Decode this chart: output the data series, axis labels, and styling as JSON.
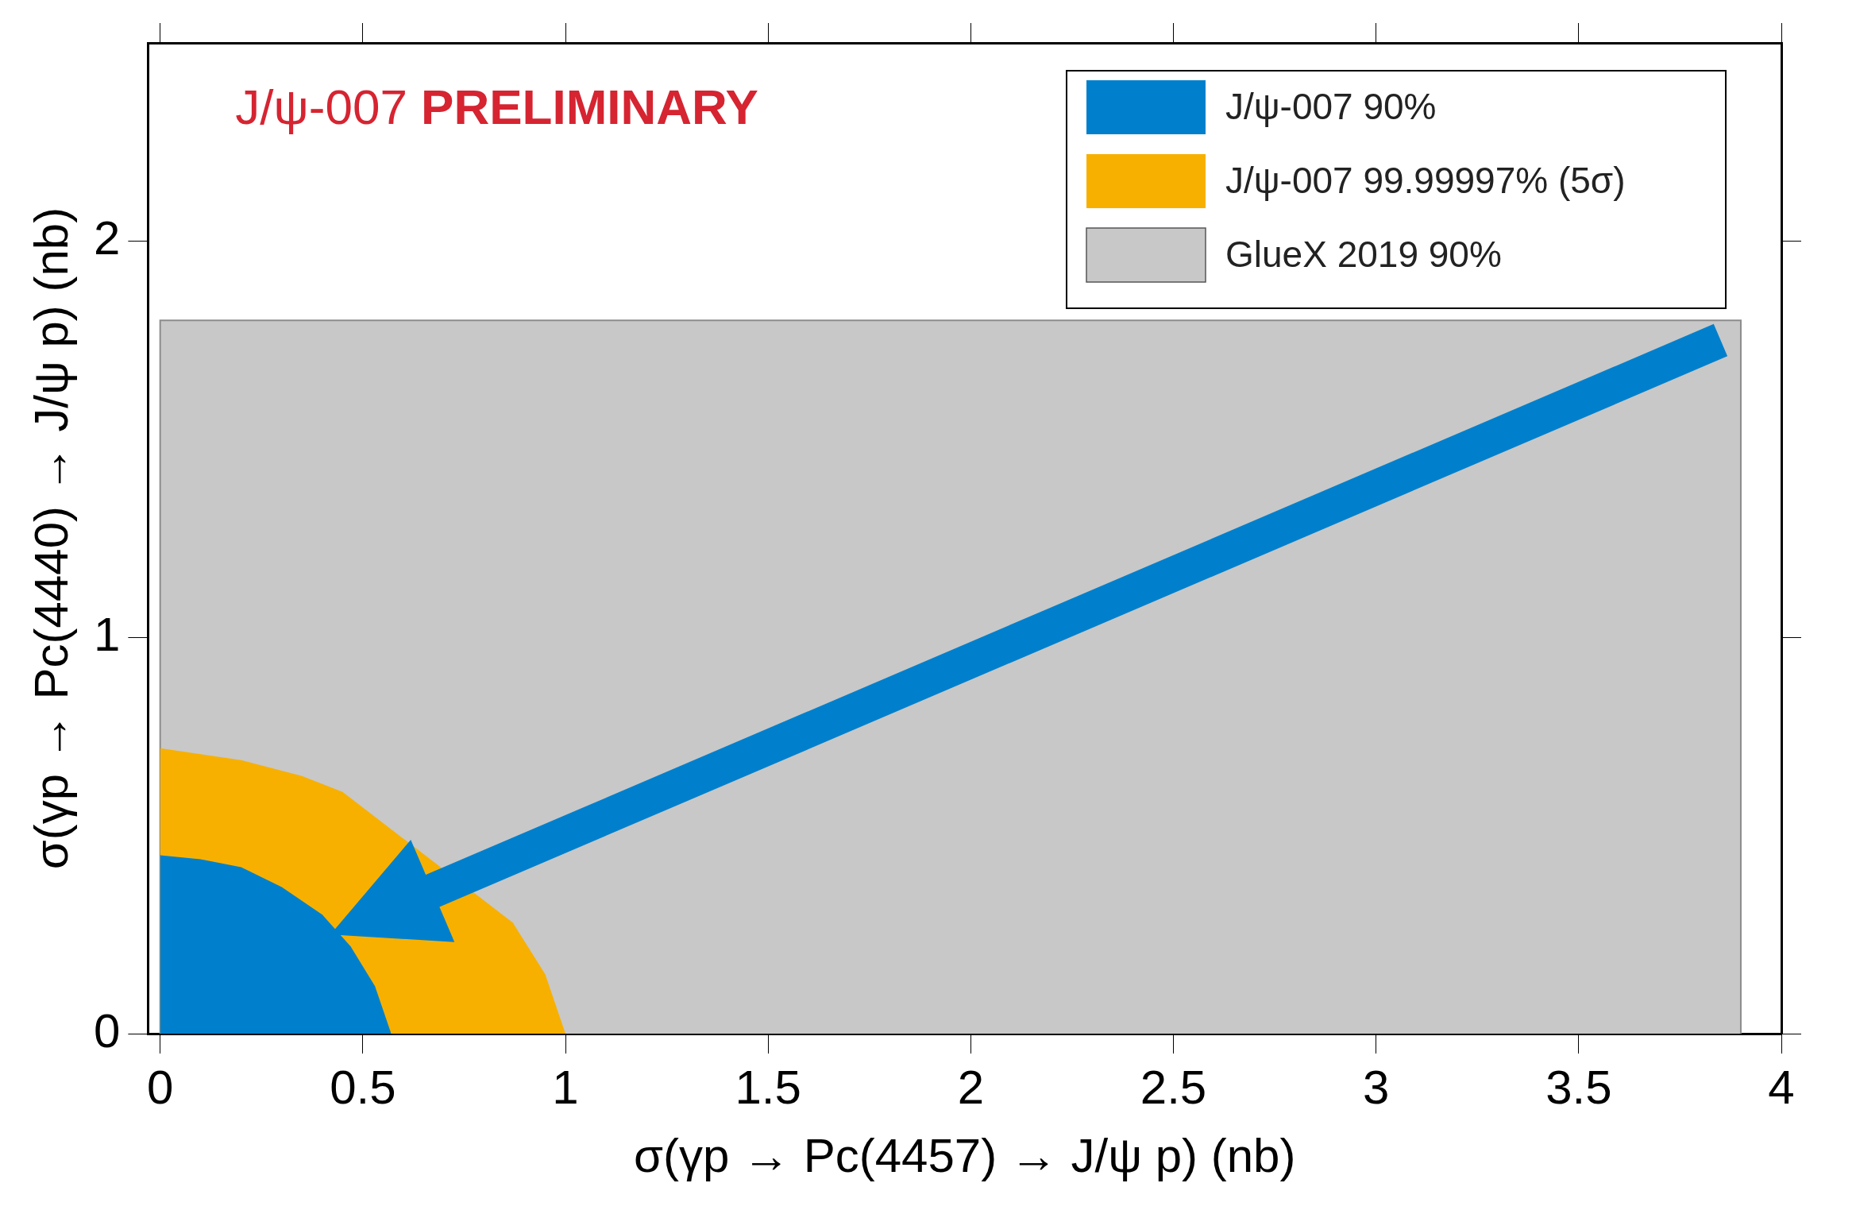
{
  "chart_data": {
    "type": "area",
    "xlabel": "σ(γp → Pc(4457) → J/ψ p) (nb)",
    "ylabel": "σ(γp → Pc(4440) → J/ψ p) (nb)",
    "annotations": [
      "J/ψ-007 PRELIMINARY"
    ],
    "xlim": [
      -0.03,
      4
    ],
    "ylim": [
      0,
      2.5
    ],
    "xticks": [
      0,
      0.5,
      1,
      1.5,
      2,
      2.5,
      3,
      3.5,
      4
    ],
    "yticks": [
      0,
      1,
      2
    ],
    "grid": false,
    "legend": "top right",
    "series": [
      {
        "name": "J/ψ-007 90%",
        "color": "#0080cc",
        "x": [
          0,
          0.1,
          0.2,
          0.3,
          0.4,
          0.47,
          0.53,
          0.57
        ],
        "values": [
          0.45,
          0.44,
          0.42,
          0.37,
          0.3,
          0.22,
          0.12,
          0
        ]
      },
      {
        "name": "J/ψ-007 99.99997% (5σ)",
        "color": "#f7b000",
        "x": [
          0,
          0.2,
          0.35,
          0.45,
          0.87,
          0.95,
          1.0
        ],
        "values": [
          0.72,
          0.69,
          0.65,
          0.61,
          0.28,
          0.15,
          0
        ]
      },
      {
        "name": "GlueX 2019 90%",
        "color": "#c8c8c8",
        "x": [
          0,
          0,
          3.9,
          3.9
        ],
        "values": [
          0,
          1.8,
          1.8,
          0
        ]
      }
    ]
  }
}
